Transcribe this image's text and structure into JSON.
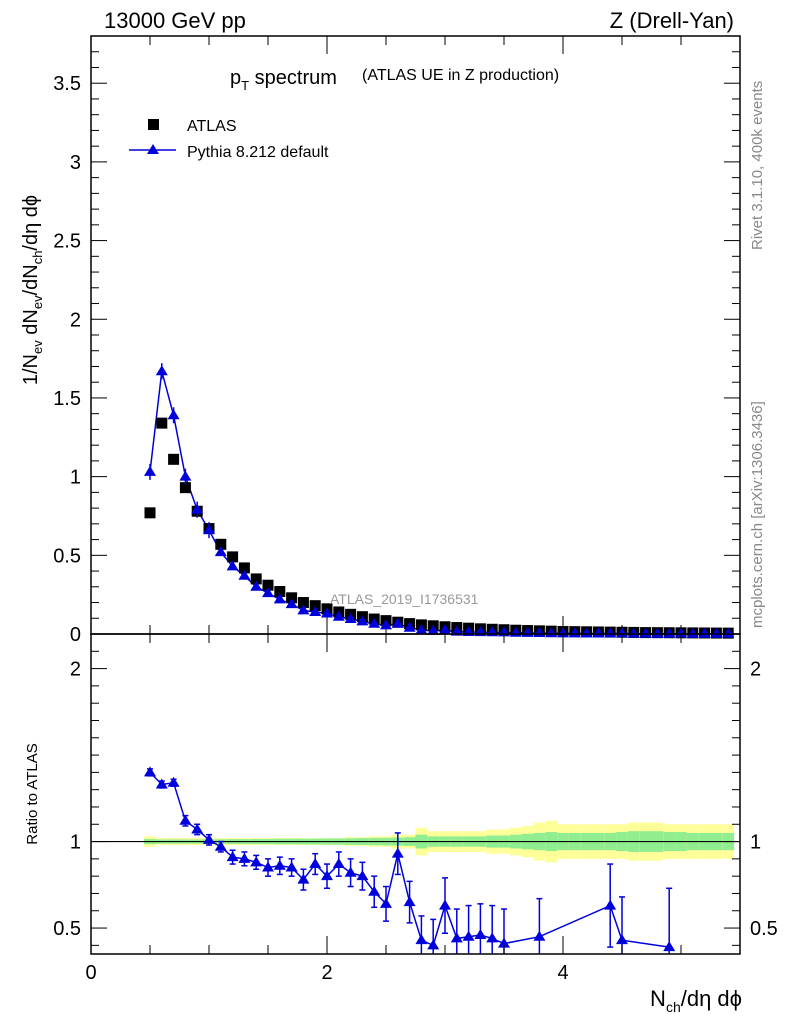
{
  "header": {
    "left": "13000 GeV pp",
    "right": "Z (Drell-Yan)"
  },
  "side_labels": {
    "rivet": "Rivet 3.1.10,  400k events",
    "mcplots": "mcplots.cern.ch [arXiv:1306.3436]"
  },
  "chart_data": [
    {
      "type": "scatter",
      "title_main": "p",
      "title_sub": "T",
      "title_rest": " spectrum",
      "title_paren": "(ATLAS UE in Z production)",
      "watermark": "ATLAS_2019_I1736531",
      "ylabel": {
        "a": "1/N",
        "a_sub": "ev",
        "b": " dN",
        "b_sub": "ev",
        "c": "/dN",
        "c_sub": "ch",
        "d": "/dη dϕ"
      },
      "xlim": [
        0,
        5.5
      ],
      "ylim": [
        0,
        3.8
      ],
      "yticks": [
        0,
        0.5,
        1,
        1.5,
        2,
        2.5,
        3,
        3.5
      ],
      "ytick_labels": [
        "0",
        "0.5",
        "1",
        "1.5",
        "2",
        "2.5",
        "3",
        "3.5"
      ],
      "legend": {
        "data_label": "ATLAS",
        "mc_label": "Pythia 8.212 default",
        "data_color": "#000000",
        "mc_color": "#0000dd"
      },
      "x": [
        0.5,
        0.6,
        0.7,
        0.8,
        0.9,
        1.0,
        1.1,
        1.2,
        1.3,
        1.4,
        1.5,
        1.6,
        1.7,
        1.8,
        1.9,
        2.0,
        2.1,
        2.2,
        2.3,
        2.4,
        2.5,
        2.6,
        2.7,
        2.8,
        2.9,
        3.0,
        3.1,
        3.2,
        3.3,
        3.4,
        3.5,
        3.6,
        3.7,
        3.8,
        3.9,
        4.0,
        4.1,
        4.2,
        4.3,
        4.4,
        4.5,
        4.6,
        4.7,
        4.8,
        4.9,
        5.0,
        5.1,
        5.2,
        5.3,
        5.4
      ],
      "series": [
        {
          "name": "ATLAS",
          "values": [
            0.77,
            1.34,
            1.11,
            0.93,
            0.78,
            0.67,
            0.57,
            0.49,
            0.42,
            0.35,
            0.31,
            0.27,
            0.23,
            0.2,
            0.18,
            0.16,
            0.14,
            0.125,
            0.11,
            0.095,
            0.085,
            0.075,
            0.066,
            0.058,
            0.052,
            0.046,
            0.041,
            0.037,
            0.033,
            0.03,
            0.027,
            0.024,
            0.022,
            0.02,
            0.018,
            0.016,
            0.015,
            0.014,
            0.013,
            0.012,
            0.011,
            0.01,
            0.009,
            0.0085,
            0.008,
            0.0075,
            0.007,
            0.0065,
            0.006,
            0.0055
          ]
        },
        {
          "name": "Pythia 8.212 default",
          "values": [
            1.03,
            1.67,
            1.39,
            1.0,
            0.79,
            0.66,
            0.52,
            0.43,
            0.37,
            0.3,
            0.26,
            0.22,
            0.19,
            0.15,
            0.14,
            0.13,
            0.11,
            0.095,
            0.08,
            0.065,
            0.055,
            0.065,
            0.04,
            0.025,
            0.02,
            0.025,
            0.015,
            0.013,
            0.012,
            0.011,
            0.01,
            0.008,
            0.007,
            0.006,
            0.005,
            0.004,
            0.004,
            0.003,
            0.003,
            0.0035,
            0.003,
            0.002,
            0.002,
            0.0018,
            0.0025,
            0.002,
            0.0017,
            0.0015,
            0.0013,
            0.0012
          ]
        }
      ]
    },
    {
      "type": "scatter",
      "ylabel": "Ratio to ATLAS",
      "xlabel": "N",
      "xlabel_sub": "ch",
      "xlabel_rest": "/dη dϕ",
      "xlim": [
        0,
        5.5
      ],
      "ylim": [
        0.35,
        2.2
      ],
      "xticks": [
        0,
        2,
        4
      ],
      "xtick_labels": [
        "0",
        "2",
        "4"
      ],
      "yticks": [
        0.5,
        1,
        2
      ],
      "ytick_labels": [
        "0.5",
        "1",
        "2"
      ],
      "band_color_inner": "#90ee90",
      "band_color_outer": "#ffff99",
      "x": [
        0.5,
        0.6,
        0.7,
        0.8,
        0.9,
        1.0,
        1.1,
        1.2,
        1.3,
        1.4,
        1.5,
        1.6,
        1.7,
        1.8,
        1.9,
        2.0,
        2.1,
        2.2,
        2.3,
        2.4,
        2.5,
        2.6,
        2.7,
        2.8,
        2.9,
        3.0,
        3.1,
        3.2,
        3.3,
        3.4,
        3.5,
        3.8,
        4.4,
        4.5,
        4.9
      ],
      "ratio": [
        1.4,
        1.33,
        1.34,
        1.12,
        1.07,
        1.01,
        0.97,
        0.91,
        0.9,
        0.88,
        0.85,
        0.86,
        0.85,
        0.78,
        0.87,
        0.8,
        0.87,
        0.82,
        0.8,
        0.71,
        0.64,
        0.93,
        0.65,
        0.43,
        0.4,
        0.63,
        0.44,
        0.45,
        0.46,
        0.44,
        0.41,
        0.45,
        0.63,
        0.43,
        0.39
      ],
      "ratio_err": [
        0.02,
        0.02,
        0.02,
        0.03,
        0.03,
        0.03,
        0.03,
        0.04,
        0.04,
        0.04,
        0.05,
        0.05,
        0.05,
        0.06,
        0.06,
        0.07,
        0.07,
        0.08,
        0.08,
        0.09,
        0.1,
        0.12,
        0.12,
        0.14,
        0.15,
        0.16,
        0.17,
        0.18,
        0.18,
        0.19,
        0.2,
        0.22,
        0.24,
        0.25,
        0.34
      ],
      "band_edges": [
        0.45,
        0.55,
        0.65,
        0.75,
        0.85,
        0.95,
        1.05,
        1.15,
        1.25,
        1.35,
        1.45,
        1.55,
        1.65,
        1.75,
        1.85,
        1.95,
        2.05,
        2.15,
        2.25,
        2.35,
        2.45,
        2.55,
        2.65,
        2.75,
        2.85,
        2.95,
        3.05,
        3.15,
        3.25,
        3.35,
        3.45,
        3.55,
        3.65,
        3.75,
        3.85,
        3.95,
        4.05,
        4.15,
        4.25,
        4.35,
        4.45,
        4.55,
        4.65,
        4.75,
        4.85,
        4.95,
        5.05,
        5.15,
        5.25,
        5.35,
        5.45
      ],
      "band_inner": [
        0.015,
        0.012,
        0.012,
        0.012,
        0.012,
        0.013,
        0.013,
        0.014,
        0.014,
        0.015,
        0.015,
        0.016,
        0.016,
        0.017,
        0.017,
        0.018,
        0.018,
        0.019,
        0.02,
        0.021,
        0.022,
        0.023,
        0.025,
        0.04,
        0.03,
        0.03,
        0.03,
        0.03,
        0.03,
        0.035,
        0.035,
        0.04,
        0.045,
        0.05,
        0.055,
        0.05,
        0.05,
        0.05,
        0.05,
        0.05,
        0.055,
        0.06,
        0.06,
        0.06,
        0.055,
        0.055,
        0.05,
        0.05,
        0.05,
        0.05
      ],
      "band_outer": [
        0.03,
        0.02,
        0.02,
        0.02,
        0.02,
        0.02,
        0.02,
        0.02,
        0.02,
        0.02,
        0.02,
        0.02,
        0.02,
        0.02,
        0.02,
        0.02,
        0.02,
        0.025,
        0.025,
        0.03,
        0.03,
        0.04,
        0.04,
        0.08,
        0.06,
        0.06,
        0.06,
        0.06,
        0.06,
        0.07,
        0.07,
        0.08,
        0.09,
        0.11,
        0.12,
        0.1,
        0.1,
        0.1,
        0.1,
        0.1,
        0.1,
        0.11,
        0.11,
        0.11,
        0.1,
        0.1,
        0.1,
        0.1,
        0.1,
        0.1
      ]
    }
  ]
}
